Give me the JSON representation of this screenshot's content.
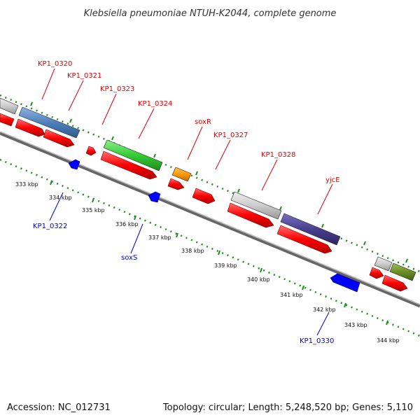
{
  "title": "Klebsiella pneumoniae NTUH-K2044, complete genome",
  "footer": {
    "accession": "Accession: NC_012731",
    "summary": "Topology: circular; Length: 5,248,520 bp; Genes: 5,110"
  },
  "ruler_labels": [
    "333 kbp",
    "334 kbp",
    "335 kbp",
    "336 kbp",
    "337 kbp",
    "338 kbp",
    "339 kbp",
    "340 kbp",
    "341 kbp",
    "342 kbp",
    "343 kbp",
    "344 kbp"
  ],
  "gene_labels_forward": [
    {
      "id": "KP1_0320",
      "text": "KP1_0320"
    },
    {
      "id": "KP1_0321",
      "text": "KP1_0321"
    },
    {
      "id": "KP1_0323",
      "text": "KP1_0323"
    },
    {
      "id": "KP1_0324",
      "text": "KP1_0324"
    },
    {
      "id": "soxR",
      "text": "soxR"
    },
    {
      "id": "KP1_0327",
      "text": "KP1_0327"
    },
    {
      "id": "KP1_0328",
      "text": "KP1_0328"
    },
    {
      "id": "yjcE",
      "text": "yjcE"
    }
  ],
  "gene_labels_reverse": [
    {
      "id": "KP1_0322",
      "text": "KP1_0322"
    },
    {
      "id": "soxS",
      "text": "soxS"
    },
    {
      "id": "KP1_0330",
      "text": "KP1_0330"
    }
  ],
  "colors": {
    "label_forward": "#e00000",
    "label_reverse": "#0000c8",
    "cds": "#ff0000",
    "reverse_cds": "#0000ff",
    "backbone": "#888888",
    "tick": "#228b22",
    "cog_blue": "#4f81bd",
    "cog_green": "#33cc33",
    "cog_orange": "#ff9900",
    "cog_gray": "#cccccc",
    "cog_purple": "#4a3f8f",
    "cog_olive": "#6b8e23"
  }
}
